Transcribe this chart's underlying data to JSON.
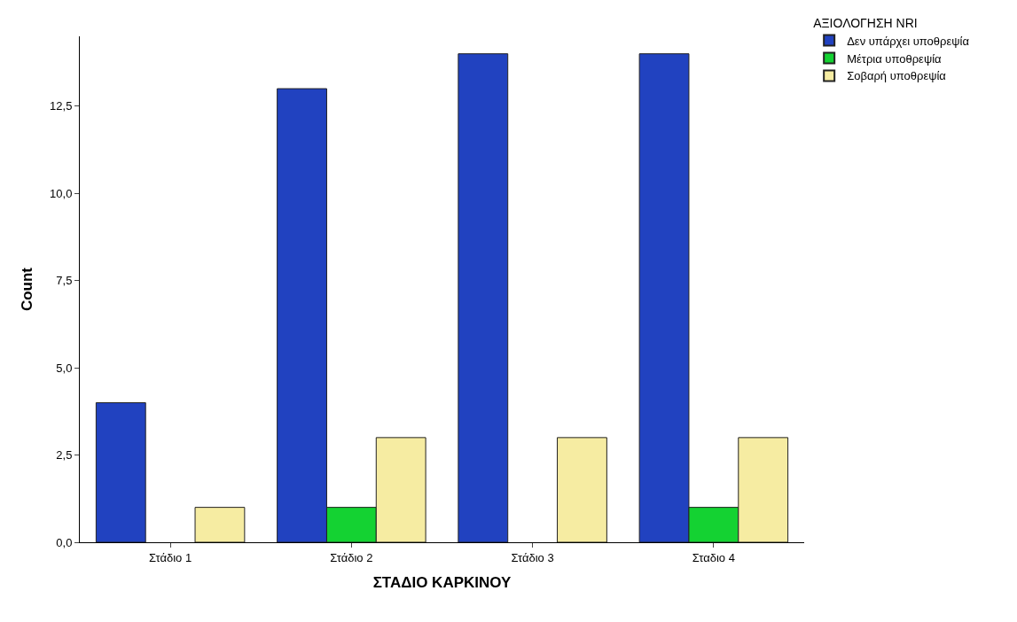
{
  "chart_data": {
    "type": "bar",
    "xlabel": "ΣΤΑΔΙΟ ΚΑΡΚΙΝΟΥ",
    "ylabel": "Count",
    "legend_title": "ΑΞΙΟΛΟΓΗΣΗ NRI",
    "categories": [
      "Στάδιο 1",
      "Στάδιο 2",
      "Στάδιο 3",
      "Σταδιο 4"
    ],
    "series": [
      {
        "name": "Δεν υπάρχει υποθρεψία",
        "color": "#2142c0",
        "values": [
          4,
          13,
          14,
          14
        ]
      },
      {
        "name": "Μέτρια υποθρεψία",
        "color": "#14d232",
        "values": [
          0,
          1,
          0,
          1
        ]
      },
      {
        "name": "Σοβαρή υποθρεψία",
        "color": "#f6eca2",
        "values": [
          1,
          3,
          3,
          3
        ]
      }
    ],
    "ylim": [
      0,
      14.5
    ],
    "yticks": [
      {
        "value": 0,
        "label": "0,0"
      },
      {
        "value": 2.5,
        "label": "2,5"
      },
      {
        "value": 5,
        "label": "5,0"
      },
      {
        "value": 7.5,
        "label": "7,5"
      },
      {
        "value": 10,
        "label": "10,0"
      },
      {
        "value": 12.5,
        "label": "12,5"
      }
    ],
    "legend": "top right"
  }
}
